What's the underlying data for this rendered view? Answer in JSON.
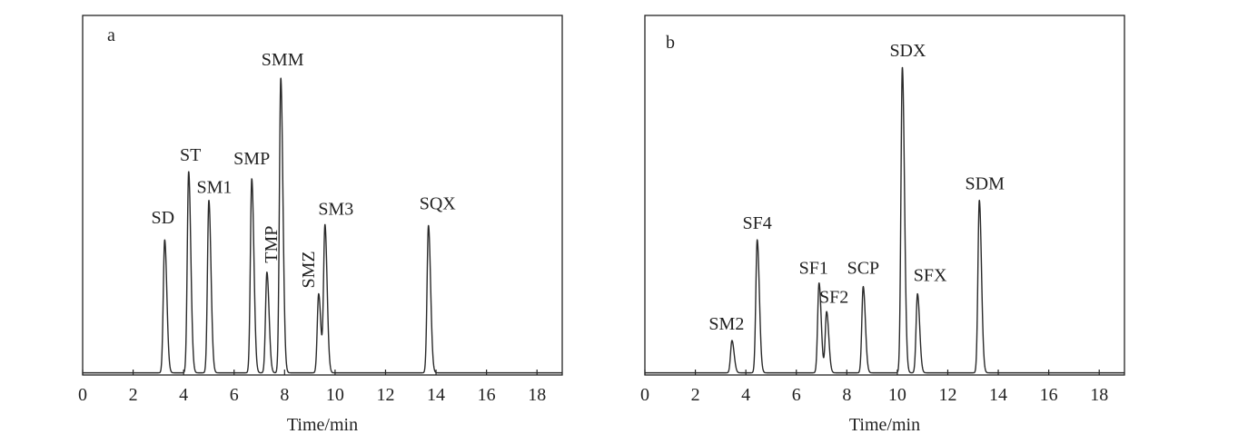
{
  "chart_data": [
    {
      "type": "line",
      "panel": "a",
      "xlabel": "Time/min",
      "ylabel": "",
      "xlim": [
        0,
        19
      ],
      "xticks": [
        0,
        2,
        4,
        6,
        8,
        10,
        12,
        14,
        16,
        18
      ],
      "ylim": [
        0,
        1.0
      ],
      "y_axis_ticks": false,
      "peaks": [
        {
          "label": "SD",
          "time": 3.25,
          "height": 0.37
        },
        {
          "label": "ST",
          "time": 4.2,
          "height": 0.56
        },
        {
          "label": "SM1",
          "time": 5.0,
          "height": 0.48
        },
        {
          "label": "SMP",
          "time": 6.7,
          "height": 0.54
        },
        {
          "label": "TMP",
          "time": 7.3,
          "height": 0.28
        },
        {
          "label": "SMM",
          "time": 7.85,
          "height": 0.82
        },
        {
          "label": "SMZ",
          "time": 9.35,
          "height": 0.22
        },
        {
          "label": "SM3",
          "time": 9.6,
          "height": 0.41
        },
        {
          "label": "SQX",
          "time": 13.7,
          "height": 0.41
        }
      ]
    },
    {
      "type": "line",
      "panel": "b",
      "xlabel": "Time/min",
      "ylabel": "",
      "xlim": [
        0,
        19
      ],
      "xticks": [
        0,
        2,
        4,
        6,
        8,
        10,
        12,
        14,
        16,
        18
      ],
      "ylim": [
        0,
        1.0
      ],
      "y_axis_ticks": false,
      "peaks": [
        {
          "label": "SM2",
          "time": 3.45,
          "height": 0.09
        },
        {
          "label": "SF4",
          "time": 4.45,
          "height": 0.37
        },
        {
          "label": "SF1",
          "time": 6.9,
          "height": 0.25
        },
        {
          "label": "SF2",
          "time": 7.2,
          "height": 0.17
        },
        {
          "label": "SCP",
          "time": 8.65,
          "height": 0.24
        },
        {
          "label": "SDX",
          "time": 10.2,
          "height": 0.85
        },
        {
          "label": "SFX",
          "time": 10.8,
          "height": 0.22
        },
        {
          "label": "SDM",
          "time": 13.25,
          "height": 0.48
        }
      ]
    }
  ]
}
